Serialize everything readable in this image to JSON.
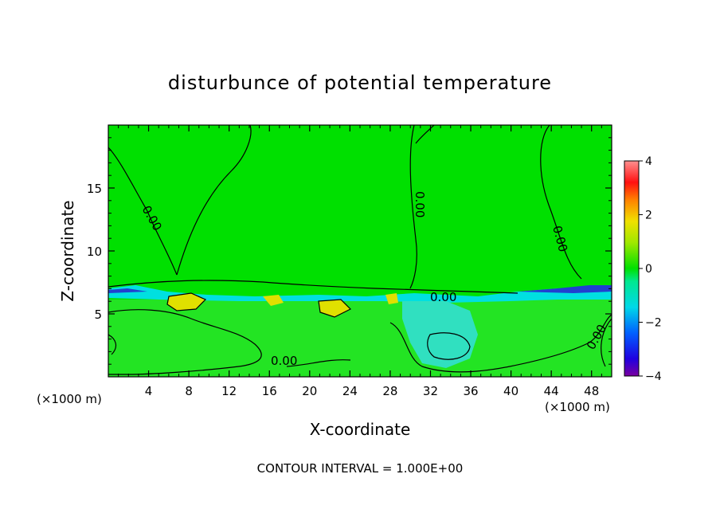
{
  "chart_data": {
    "type": "heatmap",
    "title": "disturbunce of potential temperature",
    "xlabel": "X-coordinate",
    "ylabel": "Z-coordinate",
    "x_unit_left": "(×1000 m)",
    "x_unit_right": "(×1000 m)",
    "footer": "CONTOUR INTERVAL = 1.000E+00",
    "xlim": [
      0,
      50
    ],
    "ylim": [
      0,
      20
    ],
    "x_ticks": [
      4,
      8,
      12,
      16,
      20,
      24,
      28,
      32,
      36,
      40,
      44,
      48
    ],
    "y_ticks": [
      5,
      10,
      15
    ],
    "colorbar": {
      "range": [
        -4,
        4
      ],
      "ticks": [
        -4,
        -2,
        0,
        2,
        4
      ]
    },
    "contour_labels": [
      "0.00",
      "0.00",
      "0.00",
      "0.00",
      "0.00",
      "0.00"
    ],
    "colors": {
      "background_field": "#00e000",
      "negative_band": "#00e0e0",
      "positive_patches": "#e0e000",
      "contour_line": "#000000"
    }
  }
}
